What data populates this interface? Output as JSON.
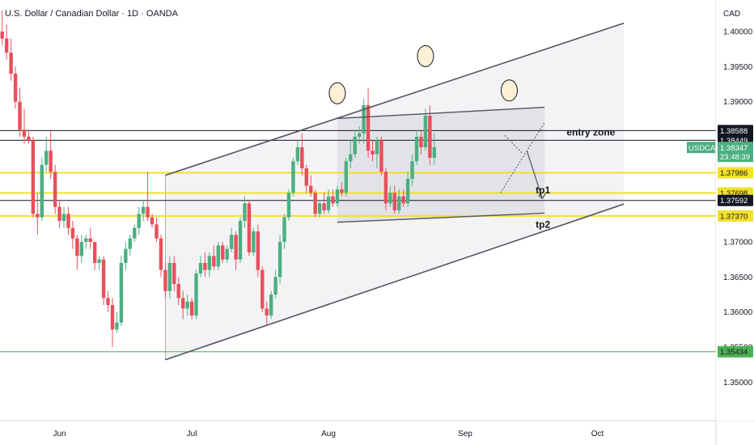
{
  "chart_data": {
    "type": "candlestick",
    "title": "U.S. Dollar / Canadian Dollar · 1D · OANDA",
    "currency": "CAD",
    "symbol": "USDCAD",
    "countdown": "23:48:39",
    "ylim": [
      1.3445,
      1.4045
    ],
    "y_ticks": [
      1.35,
      1.355,
      1.36,
      1.365,
      1.37,
      1.3737,
      1.37592,
      1.37698,
      1.37986,
      1.38347,
      1.38449,
      1.38588,
      1.39,
      1.395,
      1.4
    ],
    "y_tick_labels": [
      "1.35000",
      "1.35500",
      "1.36000",
      "1.36500",
      "1.37000",
      "1.37370",
      "1.37592",
      "1.37698",
      "1.37986",
      "1.38347",
      "1.38449",
      "1.38588",
      "1.39000",
      "1.39500",
      "1.40000"
    ],
    "x_ticks": [
      {
        "label": "Jun",
        "day": 13
      },
      {
        "label": "Jul",
        "day": 43
      },
      {
        "label": "Aug",
        "day": 74
      },
      {
        "label": "Sep",
        "day": 105
      },
      {
        "label": "Oct",
        "day": 135
      }
    ],
    "horizontal_levels": [
      {
        "price": 1.37986,
        "label": "1.37986",
        "color": "#f2e02a",
        "style": "yellow"
      },
      {
        "price": 1.37698,
        "label": "1.37698",
        "color": "#f2e02a",
        "style": "yellow"
      },
      {
        "price": 1.3737,
        "label": "1.37370",
        "color": "#f2e02a",
        "style": "yellow"
      },
      {
        "price": 1.38588,
        "label": "1.38588",
        "color": "#131722",
        "style": "black"
      },
      {
        "price": 1.38449,
        "label": "1.38449",
        "color": "#131722",
        "style": "black"
      },
      {
        "price": 1.37592,
        "label": "1.37592",
        "color": "#131722",
        "style": "black"
      },
      {
        "price": 1.35434,
        "label": "1.35434",
        "color": "#4caf50",
        "style": "green"
      }
    ],
    "last_price": {
      "price": 1.38347,
      "label": "1.38347"
    },
    "channel": {
      "upper": [
        [
          37,
          1.3795
        ],
        [
          141,
          1.4012
        ]
      ],
      "lower": [
        [
          37,
          1.3532
        ],
        [
          141,
          1.3754
        ]
      ]
    },
    "box": {
      "upper": [
        [
          76,
          1.3876
        ],
        [
          123,
          1.3892
        ]
      ],
      "lower": [
        [
          76,
          1.3728
        ],
        [
          123,
          1.3741
        ]
      ]
    },
    "circles": [
      [
        76,
        1.3912
      ],
      [
        96,
        1.3965
      ],
      [
        115,
        1.3916
      ]
    ],
    "annotations": [
      {
        "text": "entry zone",
        "day": 128,
        "price": 1.3852
      },
      {
        "text": "tp1",
        "day": 121,
        "price": 1.3769
      },
      {
        "text": "tp2",
        "day": 121,
        "price": 1.372
      }
    ],
    "candles": [
      [
        1.4,
        1.403,
        1.398,
        1.399
      ],
      [
        1.399,
        1.401,
        1.396,
        1.397
      ],
      [
        1.397,
        1.399,
        1.393,
        1.394
      ],
      [
        1.394,
        1.395,
        1.389,
        1.39
      ],
      [
        1.39,
        1.392,
        1.385,
        1.386
      ],
      [
        1.386,
        1.389,
        1.384,
        1.385
      ],
      [
        1.385,
        1.386,
        1.384,
        1.3845
      ],
      [
        1.3845,
        1.385,
        1.3735,
        1.374
      ],
      [
        1.374,
        1.377,
        1.371,
        1.3735
      ],
      [
        1.3735,
        1.382,
        1.373,
        1.381
      ],
      [
        1.381,
        1.385,
        1.38,
        1.383
      ],
      [
        1.383,
        1.386,
        1.379,
        1.38
      ],
      [
        1.38,
        1.381,
        1.374,
        1.375
      ],
      [
        1.375,
        1.376,
        1.372,
        1.373
      ],
      [
        1.373,
        1.375,
        1.372,
        1.374
      ],
      [
        1.374,
        1.375,
        1.371,
        1.372
      ],
      [
        1.372,
        1.373,
        1.369,
        1.3705
      ],
      [
        1.3705,
        1.371,
        1.366,
        1.368
      ],
      [
        1.368,
        1.371,
        1.367,
        1.37
      ],
      [
        1.37,
        1.371,
        1.369,
        1.3705
      ],
      [
        1.3705,
        1.372,
        1.369,
        1.37
      ],
      [
        1.37,
        1.37,
        1.366,
        1.367
      ],
      [
        1.367,
        1.368,
        1.366,
        1.3675
      ],
      [
        1.3675,
        1.368,
        1.361,
        1.362
      ],
      [
        1.362,
        1.363,
        1.36,
        1.361
      ],
      [
        1.361,
        1.362,
        1.355,
        1.3575
      ],
      [
        1.3575,
        1.36,
        1.357,
        1.3585
      ],
      [
        1.3585,
        1.368,
        1.358,
        1.367
      ],
      [
        1.367,
        1.37,
        1.366,
        1.369
      ],
      [
        1.369,
        1.371,
        1.368,
        1.3705
      ],
      [
        1.3705,
        1.3725,
        1.37,
        1.372
      ],
      [
        1.372,
        1.375,
        1.371,
        1.374
      ],
      [
        1.374,
        1.376,
        1.373,
        1.375
      ],
      [
        1.375,
        1.38,
        1.373,
        1.3735
      ],
      [
        1.3735,
        1.374,
        1.372,
        1.3725
      ],
      [
        1.3725,
        1.3735,
        1.37,
        1.3705
      ],
      [
        1.3705,
        1.371,
        1.365,
        1.366
      ],
      [
        1.366,
        1.367,
        1.362,
        1.363
      ],
      [
        1.363,
        1.368,
        1.362,
        1.367
      ],
      [
        1.367,
        1.368,
        1.363,
        1.364
      ],
      [
        1.364,
        1.365,
        1.361,
        1.362
      ],
      [
        1.362,
        1.363,
        1.359,
        1.3605
      ],
      [
        1.3605,
        1.3625,
        1.3595,
        1.3615
      ],
      [
        1.3615,
        1.362,
        1.359,
        1.3595
      ],
      [
        1.3595,
        1.366,
        1.359,
        1.3655
      ],
      [
        1.3655,
        1.368,
        1.365,
        1.367
      ],
      [
        1.367,
        1.3685,
        1.365,
        1.366
      ],
      [
        1.366,
        1.3685,
        1.365,
        1.368
      ],
      [
        1.368,
        1.3695,
        1.366,
        1.3665
      ],
      [
        1.3665,
        1.37,
        1.366,
        1.3695
      ],
      [
        1.3695,
        1.37,
        1.367,
        1.3675
      ],
      [
        1.3675,
        1.3695,
        1.367,
        1.369
      ],
      [
        1.369,
        1.372,
        1.3685,
        1.371
      ],
      [
        1.371,
        1.3715,
        1.366,
        1.3675
      ],
      [
        1.3675,
        1.3735,
        1.367,
        1.373
      ],
      [
        1.373,
        1.3765,
        1.372,
        1.3755
      ],
      [
        1.3755,
        1.376,
        1.368,
        1.3685
      ],
      [
        1.3685,
        1.372,
        1.368,
        1.3715
      ],
      [
        1.3715,
        1.3725,
        1.365,
        1.366
      ],
      [
        1.366,
        1.3665,
        1.36,
        1.3605
      ],
      [
        1.3605,
        1.3615,
        1.358,
        1.3595
      ],
      [
        1.3595,
        1.363,
        1.359,
        1.3625
      ],
      [
        1.3625,
        1.366,
        1.362,
        1.365
      ],
      [
        1.365,
        1.371,
        1.364,
        1.37
      ],
      [
        1.37,
        1.374,
        1.369,
        1.3735
      ],
      [
        1.3735,
        1.3775,
        1.373,
        1.377
      ],
      [
        1.377,
        1.382,
        1.3765,
        1.3815
      ],
      [
        1.3815,
        1.3845,
        1.381,
        1.3835
      ],
      [
        1.3835,
        1.3855,
        1.3795,
        1.3805
      ],
      [
        1.3805,
        1.381,
        1.377,
        1.378
      ],
      [
        1.378,
        1.3795,
        1.3765,
        1.377
      ],
      [
        1.377,
        1.3775,
        1.3735,
        1.374
      ],
      [
        1.374,
        1.376,
        1.3735,
        1.3755
      ],
      [
        1.3755,
        1.377,
        1.374,
        1.3745
      ],
      [
        1.3745,
        1.3775,
        1.374,
        1.3765
      ],
      [
        1.3765,
        1.3775,
        1.375,
        1.3755
      ],
      [
        1.3755,
        1.378,
        1.375,
        1.3775
      ],
      [
        1.3775,
        1.3785,
        1.3765,
        1.377
      ],
      [
        1.377,
        1.382,
        1.3765,
        1.3815
      ],
      [
        1.3815,
        1.3845,
        1.3805,
        1.3825
      ],
      [
        1.3825,
        1.386,
        1.382,
        1.385
      ],
      [
        1.385,
        1.3865,
        1.384,
        1.3855
      ],
      [
        1.3855,
        1.3905,
        1.384,
        1.3895
      ],
      [
        1.3895,
        1.392,
        1.382,
        1.383
      ],
      [
        1.383,
        1.3845,
        1.3815,
        1.3825
      ],
      [
        1.3825,
        1.385,
        1.3805,
        1.3845
      ],
      [
        1.3845,
        1.385,
        1.3795,
        1.38
      ],
      [
        1.38,
        1.3805,
        1.3745,
        1.3755
      ],
      [
        1.3755,
        1.378,
        1.375,
        1.377
      ],
      [
        1.377,
        1.378,
        1.374,
        1.3745
      ],
      [
        1.3745,
        1.3775,
        1.374,
        1.3765
      ],
      [
        1.3765,
        1.3775,
        1.375,
        1.3755
      ],
      [
        1.3755,
        1.38,
        1.375,
        1.379
      ],
      [
        1.379,
        1.3825,
        1.378,
        1.3815
      ],
      [
        1.3815,
        1.386,
        1.381,
        1.385
      ],
      [
        1.385,
        1.386,
        1.3825,
        1.3835
      ],
      [
        1.3835,
        1.389,
        1.383,
        1.388
      ],
      [
        1.388,
        1.3895,
        1.381,
        1.382
      ],
      [
        1.382,
        1.3855,
        1.381,
        1.3835
      ]
    ]
  }
}
